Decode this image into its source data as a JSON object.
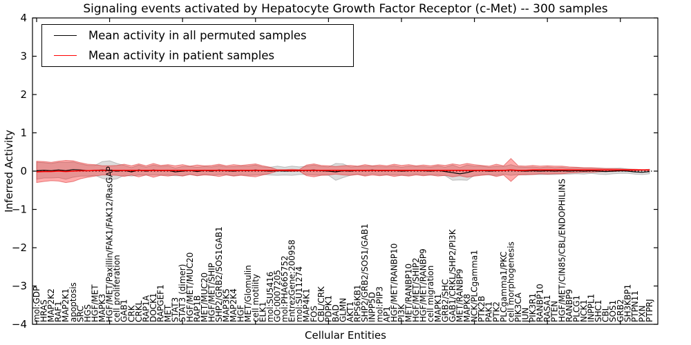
{
  "title": "Signaling events activated by Hepatocyte Growth Factor Receptor (c-Met) -- 300 samples",
  "legend": {
    "entries": [
      {
        "label": "Mean activity in all permuted samples",
        "color": "#000000"
      },
      {
        "label": "Mean activity in patient samples",
        "color": "#ff0000"
      }
    ]
  },
  "colors": {
    "background": "#ffffff",
    "axis": "#000000",
    "permuted_line": "#000000",
    "patient_line": "#ff0000",
    "permuted_band_fill": "rgba(130,130,130,0.28)",
    "permuted_band_edge": "rgba(110,110,110,0.40)",
    "patient_band_fill": "rgba(255,0,0,0.33)",
    "patient_band_edge": "rgba(214,48,48,0.55)"
  },
  "chart_data": {
    "type": "line",
    "title": "Signaling events activated by Hepatocyte Growth Factor Receptor (c-Met) -- 300 samples",
    "xlabel": "Cellular Entities",
    "ylabel": "Inferred Activity",
    "ylim": [
      -4,
      4
    ],
    "y_ticks": [
      4,
      3,
      2,
      1,
      0,
      -1,
      -2,
      -3,
      -4
    ],
    "grid": false,
    "legend_position": "upper left",
    "zero_line": 0,
    "x_major_tick_every": 10,
    "categories": [
      "mol:GDP",
      "HRAS",
      "MAP2K2",
      "RAF1",
      "MAP2K1",
      "apoptosis",
      "SRC",
      "HGS",
      "HGF/MET",
      "MAPK3",
      "HGF/MET/Paxillin/FAK1/FAK12/RasGAP",
      "cell proliferation",
      "GAB1",
      "CRK",
      "CRKL",
      "RAP1A",
      "DOCK1",
      "RAPGEF1",
      "MET",
      "STAT3",
      "STAT3 (dimer)",
      "HGF/MET/MUC20",
      "RAP1B",
      "MET/MUC20",
      "HGF/MET/SHIP",
      "SHP2/GRB2/SOS1GAB1",
      "MAP3K5",
      "MAP2K4",
      "HGF",
      "MET/Glomulin",
      "cell motility",
      "ELK1",
      "mol:SU5416",
      "GO:0007205",
      "mol:PHA665752",
      "EntrezGene:200958",
      "mol:SU11274",
      "MAP4K1",
      "FOS",
      "CBL/CRK",
      "PDPK1",
      "BAD",
      "GLMN",
      "AKT1",
      "RPS6KB1",
      "SHP2/GRB2/SOS1/GAB1",
      "INPP5D",
      "mol:PIP3",
      "AP1",
      "HGF/MET/RANBP10",
      "PI3K",
      "MET/RANBP10",
      "HGF/MET/SHIP2",
      "HGF/MET/RANBP9",
      "cell migration",
      "MAPK1",
      "GRB2/SHC",
      "GAB1/CRKL/SHP2/PI3K",
      "MET/RANBP9",
      "MAPK8",
      "NCK/PLCgamma1",
      "PTK2B",
      "PAK1",
      "PTK2",
      "PLCgamma1/PKC",
      "cell morphogenesis",
      "PIK3CA",
      "JUN",
      "PIK3R1",
      "RANBP10",
      "RASA1",
      "PTEN",
      "HGF/MET/CIN85/CBL/ENDOPHILINS",
      "RANBP9",
      "PLCG1",
      "NCK1",
      "INPPL1",
      "SHC1",
      "CBL",
      "SOS1",
      "GRB2",
      "SH3KBP1",
      "PTPN11",
      "PXN",
      "PTPRJ"
    ],
    "series": [
      {
        "name": "Mean activity in all permuted samples",
        "color": "#000000",
        "style": "solid",
        "values": [
          0.01,
          0.02,
          0.01,
          0.03,
          0.01,
          0.04,
          0.03,
          0.01,
          0.02,
          0.03,
          0.02,
          0.0,
          0.02,
          -0.02,
          0.03,
          0.0,
          0.03,
          0.01,
          0.02,
          -0.02,
          0.0,
          0.02,
          -0.01,
          0.02,
          0.0,
          0.03,
          0.01,
          0.0,
          0.02,
          0.01,
          0.03,
          0.01,
          0.0,
          0.01,
          0.0,
          0.01,
          0.01,
          0.02,
          0.03,
          0.01,
          0.0,
          -0.02,
          0.01,
          0.0,
          0.02,
          0.01,
          0.03,
          0.01,
          0.01,
          0.02,
          0.0,
          0.01,
          0.02,
          0.01,
          0.0,
          0.02,
          -0.01,
          -0.04,
          -0.07,
          -0.04,
          0.01,
          0.02,
          0.0,
          0.01,
          0.02,
          0.03,
          0.01,
          0.0,
          0.01,
          0.0,
          0.01,
          0.0,
          0.01,
          0.0,
          0.01,
          0.0,
          0.01,
          0.0,
          -0.01,
          0.0,
          0.01,
          0.0,
          -0.02,
          -0.03,
          -0.01
        ]
      },
      {
        "name": "Mean activity in patient samples",
        "color": "#ff0000",
        "style": "solid",
        "values": [
          -0.02,
          -0.01,
          -0.01,
          0.0,
          -0.01,
          0.0,
          0.01,
          0.01,
          0.02,
          0.02,
          0.02,
          0.02,
          0.02,
          0.02,
          0.02,
          0.02,
          0.02,
          0.02,
          0.02,
          0.02,
          0.02,
          0.02,
          0.02,
          0.02,
          0.02,
          0.02,
          0.02,
          0.02,
          0.02,
          0.02,
          0.02,
          0.02,
          0.02,
          0.02,
          0.02,
          0.02,
          0.02,
          0.02,
          0.02,
          0.02,
          0.02,
          0.02,
          0.02,
          0.02,
          0.02,
          0.02,
          0.02,
          0.02,
          0.02,
          0.02,
          0.02,
          0.02,
          0.02,
          0.02,
          0.02,
          0.02,
          0.02,
          0.02,
          0.02,
          0.02,
          0.02,
          0.02,
          0.02,
          0.02,
          0.02,
          0.03,
          0.02,
          0.02,
          0.03,
          0.03,
          0.03,
          0.03,
          0.03,
          0.03,
          0.03,
          0.03,
          0.03,
          0.03,
          0.03,
          0.03,
          0.03,
          0.03,
          0.03,
          0.03,
          0.03
        ]
      }
    ],
    "bands": [
      {
        "name": "permuted samples band (std)",
        "center_series": 0,
        "half_widths": [
          0.22,
          0.2,
          0.19,
          0.2,
          0.22,
          0.2,
          0.16,
          0.14,
          0.13,
          0.22,
          0.25,
          0.2,
          0.13,
          0.11,
          0.13,
          0.1,
          0.13,
          0.11,
          0.12,
          0.1,
          0.12,
          0.1,
          0.11,
          0.1,
          0.11,
          0.12,
          0.1,
          0.12,
          0.11,
          0.12,
          0.13,
          0.1,
          0.1,
          0.12,
          0.1,
          0.12,
          0.1,
          0.11,
          0.13,
          0.11,
          0.11,
          0.22,
          0.18,
          0.11,
          0.1,
          0.12,
          0.1,
          0.11,
          0.1,
          0.12,
          0.1,
          0.12,
          0.1,
          0.11,
          0.1,
          0.12,
          0.11,
          0.2,
          0.16,
          0.2,
          0.12,
          0.11,
          0.1,
          0.12,
          0.1,
          0.14,
          0.1,
          0.1,
          0.1,
          0.09,
          0.1,
          0.09,
          0.09,
          0.08,
          0.08,
          0.08,
          0.07,
          0.08,
          0.08,
          0.07,
          0.07,
          0.06,
          0.06,
          0.06,
          0.06
        ]
      },
      {
        "name": "patient samples band (std)",
        "center_series": 1,
        "half_widths": [
          0.28,
          0.26,
          0.24,
          0.26,
          0.29,
          0.27,
          0.21,
          0.17,
          0.15,
          0.12,
          0.12,
          0.13,
          0.16,
          0.12,
          0.17,
          0.12,
          0.18,
          0.13,
          0.15,
          0.12,
          0.15,
          0.11,
          0.14,
          0.12,
          0.13,
          0.16,
          0.12,
          0.15,
          0.13,
          0.15,
          0.17,
          0.12,
          0.08,
          0.02,
          0.02,
          0.03,
          0.02,
          0.14,
          0.17,
          0.13,
          0.12,
          0.1,
          0.12,
          0.13,
          0.11,
          0.15,
          0.12,
          0.14,
          0.12,
          0.16,
          0.13,
          0.15,
          0.12,
          0.14,
          0.12,
          0.15,
          0.13,
          0.17,
          0.14,
          0.18,
          0.15,
          0.13,
          0.11,
          0.16,
          0.12,
          0.3,
          0.12,
          0.11,
          0.12,
          0.1,
          0.11,
          0.1,
          0.1,
          0.08,
          0.07,
          0.06,
          0.06,
          0.05,
          0.04,
          0.04,
          0.03,
          0.02,
          0.02,
          0.01,
          0.01
        ]
      }
    ]
  }
}
